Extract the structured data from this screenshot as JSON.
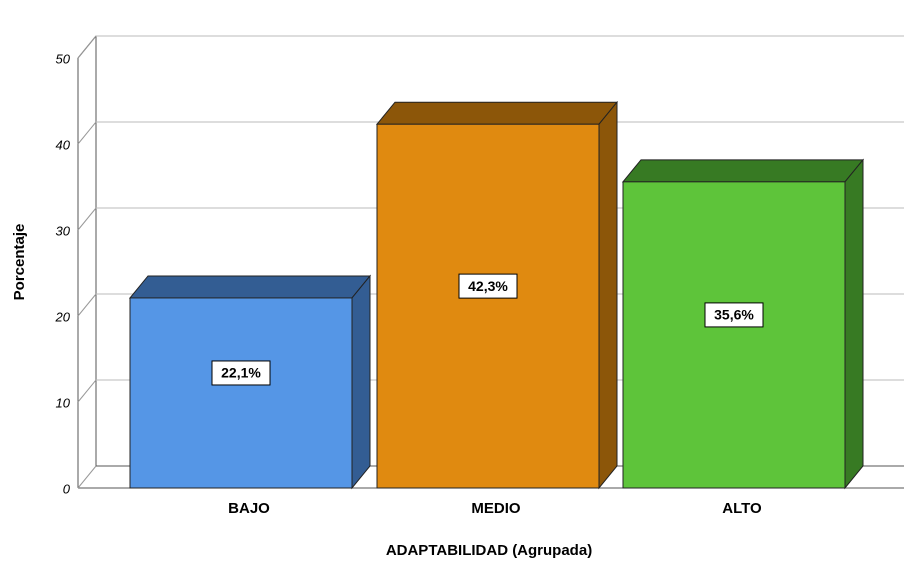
{
  "chart_data": {
    "type": "bar3d",
    "x_label": "ADAPTABILIDAD (Agrupada)",
    "y_label": "Porcentaje",
    "categories": [
      "BAJO",
      "MEDIO",
      "ALTO"
    ],
    "values": [
      22.1,
      42.3,
      35.6
    ],
    "value_labels": [
      "22,1%",
      "42,3%",
      "35,6%"
    ],
    "colors": [
      "#5596e6",
      "#e08a10",
      "#5ec43a"
    ],
    "side_colors": [
      "#335d93",
      "#8c5609",
      "#377a23"
    ],
    "ylim": [
      0,
      50
    ],
    "yticks": [
      0,
      10,
      20,
      30,
      40,
      50
    ],
    "grid": true
  }
}
